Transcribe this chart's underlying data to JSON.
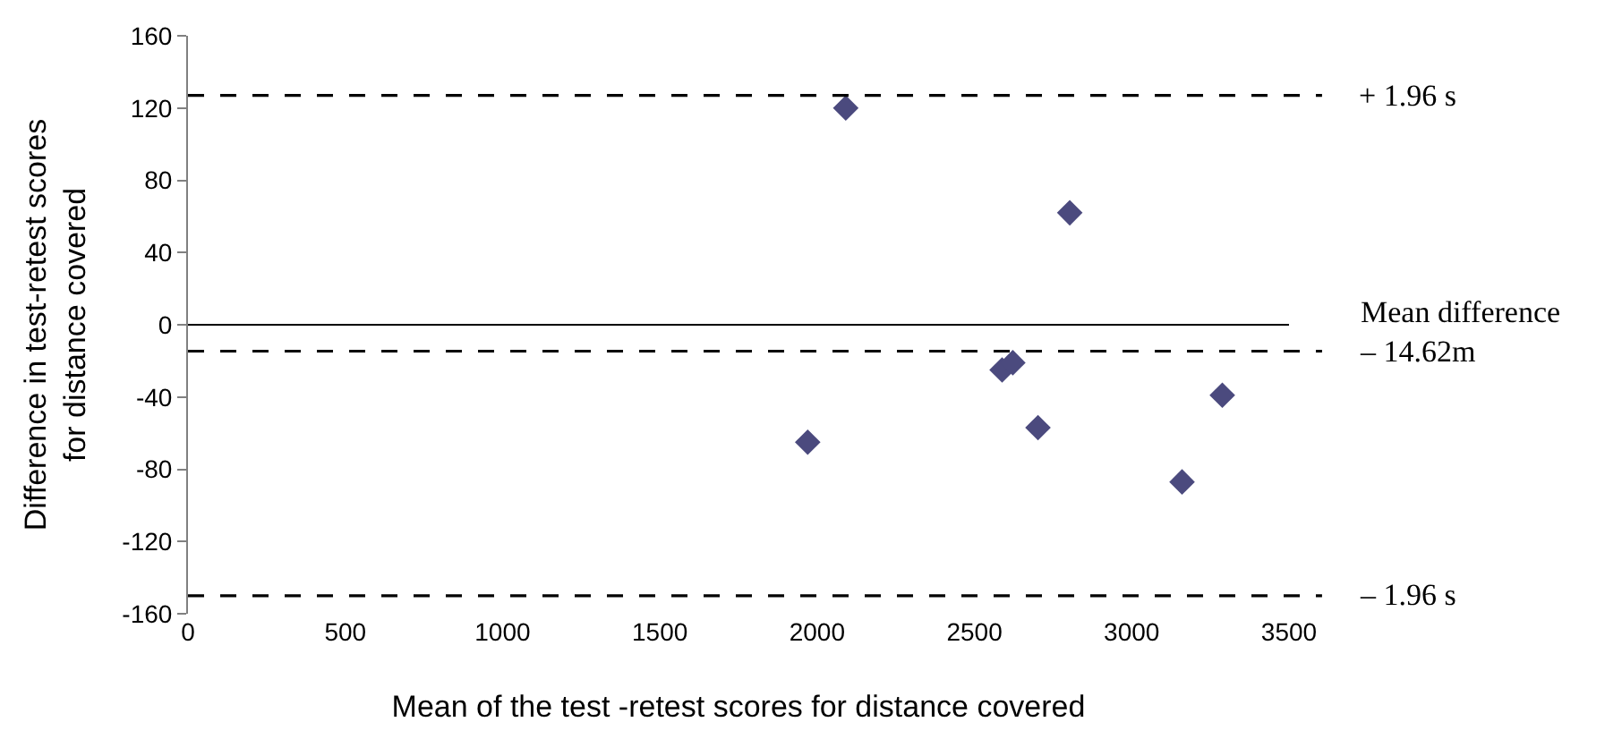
{
  "chart_data": {
    "type": "scatter",
    "xlabel": "Mean of the test -retest scores for distance covered",
    "ylabel": "Difference in test-retest scores\nfor distance covered",
    "x": [
      2091,
      2803,
      2588,
      2622,
      1970,
      2702,
      3288,
      3160
    ],
    "series": [
      {
        "color": "#4b4a7e",
        "values": [
          120,
          62,
          -25,
          -21,
          -65,
          -57,
          -39,
          -87
        ]
      }
    ],
    "marker": "diamond",
    "xlim": [
      0,
      3500
    ],
    "xticks": [
      0,
      500,
      1000,
      1500,
      2000,
      2500,
      3000,
      3500
    ],
    "ylim": [
      -160,
      160
    ],
    "yticks": [
      -160,
      -120,
      -80,
      -40,
      0,
      40,
      80,
      120,
      160
    ],
    "ref_lines": [
      {
        "axis": "y",
        "value": 0,
        "label": null,
        "line_style": "solid",
        "color": "#000000"
      },
      {
        "axis": "y",
        "value": 127,
        "label": "+ 1.96 s",
        "line_style": "dashed",
        "color": "#000000"
      },
      {
        "axis": "y",
        "value": -14.62,
        "label": "Mean difference\n– 14.62m",
        "line_style": "dashed",
        "color": "#000000"
      },
      {
        "axis": "y",
        "value": -150,
        "label": "– 1.96 s",
        "line_style": "dashed",
        "color": "#000000"
      }
    ]
  }
}
